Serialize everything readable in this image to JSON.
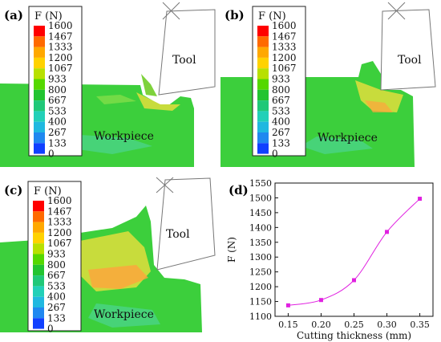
{
  "panels": [
    {
      "label": "(a)",
      "tool_label": "Tool",
      "work_label": "Workpiece"
    },
    {
      "label": "(b)",
      "tool_label": "Tool",
      "work_label": "Workpiece"
    },
    {
      "label": "(c)",
      "tool_label": "Tool",
      "work_label": "Workpiece"
    }
  ],
  "legend": {
    "title": "F (N)",
    "ticks": [
      "1600",
      "1467",
      "1333",
      "1200",
      "1067",
      "933",
      "800",
      "667",
      "533",
      "400",
      "267",
      "133",
      "0"
    ],
    "colors": [
      "#ff0000",
      "#ff6a00",
      "#ffa800",
      "#ffd200",
      "#b8e000",
      "#55d800",
      "#22c430",
      "#20c878",
      "#22d0b8",
      "#20b8e0",
      "#2088f0",
      "#1040ff",
      "#0000d0"
    ]
  },
  "chart_label": "(d)",
  "chart_data": {
    "type": "line",
    "title": "",
    "xlabel": "Cutting thickness (mm)",
    "ylabel": "F (N)",
    "xlim": [
      0.13,
      0.37
    ],
    "ylim": [
      1100,
      1550
    ],
    "xticks": [
      "0.15",
      "0.20",
      "0.25",
      "0.30",
      "0.35"
    ],
    "yticks": [
      "1100",
      "1150",
      "1200",
      "1250",
      "1300",
      "1350",
      "1400",
      "1450",
      "1500",
      "1550"
    ],
    "series": [
      {
        "x": [
          0.15,
          0.2,
          0.25,
          0.3,
          0.35
        ],
        "y": [
          1137,
          1155,
          1222,
          1385,
          1497
        ],
        "color": "#e020e0"
      }
    ]
  }
}
